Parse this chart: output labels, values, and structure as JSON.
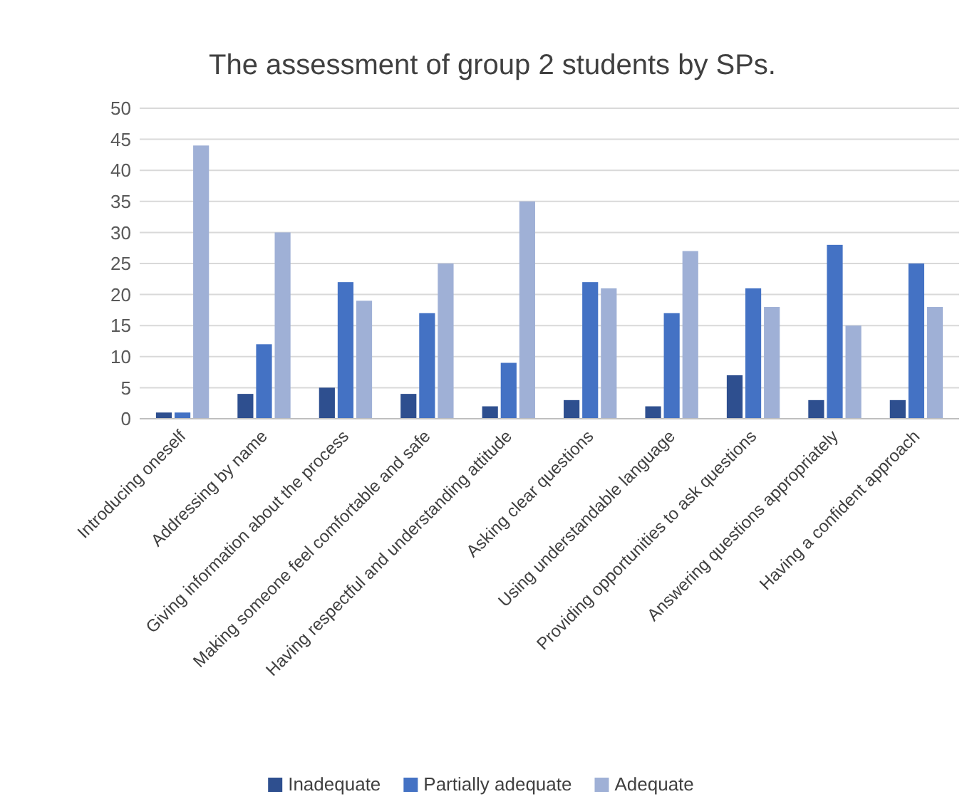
{
  "chart_data": {
    "type": "bar",
    "title": "The assessment of group 2 students by SPs.",
    "categories": [
      "Introducing oneself",
      "Addressing by name",
      "Giving information about the process",
      "Making someone feel comfortable and safe",
      "Having respectful and understanding attitude",
      "Asking clear questions",
      "Using understandable language",
      "Providing opportunities to ask questions",
      "Answering questions appropriately",
      "Having a confident approach"
    ],
    "series": [
      {
        "name": "Inadequate",
        "color": "#2e4f8f",
        "values": [
          1,
          4,
          5,
          4,
          2,
          3,
          2,
          7,
          3,
          3
        ]
      },
      {
        "name": "Partially adequate",
        "color": "#4472c4",
        "values": [
          1,
          12,
          22,
          17,
          9,
          22,
          17,
          21,
          28,
          25
        ]
      },
      {
        "name": "Adequate",
        "color": "#9fb0d6",
        "values": [
          44,
          30,
          19,
          25,
          35,
          21,
          27,
          18,
          15,
          18
        ]
      }
    ],
    "ylim": [
      0,
      50
    ],
    "yticks": [
      0,
      5,
      10,
      15,
      20,
      25,
      30,
      35,
      40,
      45,
      50
    ],
    "grid": "y",
    "legend": "bottom"
  }
}
